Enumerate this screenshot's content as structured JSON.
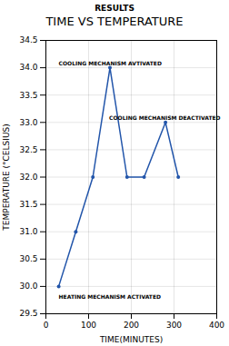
{
  "chart_data": {
    "type": "line",
    "title": "TIME VS TEMPERATURE",
    "subtitle": "RESULTS",
    "xlabel": "TIME(MINUTES)",
    "ylabel": "TEMPERATURE (°CELSIUS)",
    "x": [
      30,
      70,
      110,
      150,
      190,
      230,
      280,
      310
    ],
    "values": [
      30,
      31,
      32,
      34,
      32,
      32,
      33,
      32
    ],
    "color": "#2255aa",
    "marker": "circle",
    "xlim": [
      0,
      400
    ],
    "ylim": [
      29.5,
      34.5
    ],
    "xticks": [
      0,
      100,
      200,
      300,
      400
    ],
    "yticks": [
      29.5,
      {
        "value": 30,
        "label": "30.0"
      },
      30.5,
      {
        "value": 31,
        "label": "31.0"
      },
      31.5,
      {
        "value": 32,
        "label": "32.0"
      },
      32.5,
      {
        "value": 33,
        "label": "33.0"
      },
      33.5,
      {
        "value": 34,
        "label": "34.0"
      },
      34.5
    ],
    "annotations": [
      {
        "text": "COOLING MECHANISM AVTIVATED",
        "x": 30,
        "y": 34.05
      },
      {
        "text": "COOLING MECHANISM DEACTIVATED",
        "x": 148,
        "y": 33.05
      },
      {
        "text": "HEATING MECHANISM ACTIVATED",
        "x": 30,
        "y": 29.77
      }
    ],
    "grid": true
  }
}
